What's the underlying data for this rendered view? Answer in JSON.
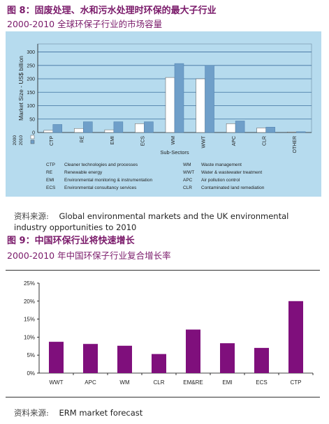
{
  "fig8": {
    "title": "图 8：固废处理、水和污水处理时环保的最大子行业",
    "subtitle": "2000-2010 全球环保子行业的市场容量",
    "source_label": "资料来源:",
    "source_text": "Global environmental markets and the UK environmental industry opportunities to 2010"
  },
  "fig9": {
    "title": "图 9：中国环保行业将快速增长",
    "subtitle": "2000-2010 年中国环保子行业复合增长率",
    "source_label": "资料来源:",
    "source_text": "ERM market forecast"
  },
  "colors": {
    "title": "#7a1a6a",
    "panel_bg": "#b6dbee",
    "bar_2000": "#ffffff",
    "bar_2010": "#6f9fc9",
    "bar_purple": "#7f0f7c"
  },
  "chart_data": [
    {
      "type": "bar",
      "title": "",
      "xlabel": "Sub-Sectors",
      "ylabel": "Market Size - US$ billion",
      "ylim": [
        0,
        330
      ],
      "yticks": [
        0,
        50,
        100,
        150,
        200,
        250,
        300
      ],
      "grid": true,
      "categories": [
        "CTP",
        "RE",
        "EMI",
        "ECS",
        "WM",
        "WWT",
        "APC",
        "CLR",
        "OTHER"
      ],
      "series": [
        {
          "name": "2000",
          "values": [
            8,
            15,
            10,
            33,
            205,
            200,
            33,
            17,
            2
          ]
        },
        {
          "name": "2010",
          "values": [
            30,
            40,
            40,
            40,
            257,
            250,
            43,
            20,
            3
          ]
        }
      ],
      "legend": "bottom-left",
      "abbreviations": [
        {
          "code": "CTP",
          "meaning": "Cleaner technologies and processes"
        },
        {
          "code": "RE",
          "meaning": "Renewable energy"
        },
        {
          "code": "EMI",
          "meaning": "Environmental monitoring & instrumentation"
        },
        {
          "code": "ECS",
          "meaning": "Environmental consultancy services"
        },
        {
          "code": "WM",
          "meaning": "Waste management"
        },
        {
          "code": "WWT",
          "meaning": "Water & wastewater treatment"
        },
        {
          "code": "APC",
          "meaning": "Air pollution control"
        },
        {
          "code": "CLR",
          "meaning": "Contaminated land remediation"
        }
      ]
    },
    {
      "type": "bar",
      "title": "",
      "xlabel": "",
      "ylabel": "",
      "ylim": [
        0,
        25
      ],
      "yticks": [
        "0%",
        "5%",
        "10%",
        "15%",
        "20%",
        "25%"
      ],
      "grid": false,
      "categories": [
        "WWT",
        "APC",
        "WM",
        "CLR",
        "EM&RE",
        "EMI",
        "ECS",
        "CTP"
      ],
      "values": [
        8.7,
        8.1,
        7.6,
        5.3,
        12.1,
        8.3,
        7.0,
        20.0
      ]
    }
  ]
}
